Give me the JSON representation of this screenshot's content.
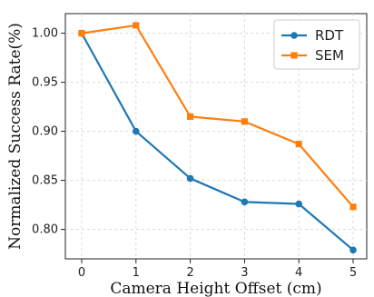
{
  "chart_data": {
    "type": "line",
    "xlabel": "Camera Height Offset (cm)",
    "ylabel": "Normalized Success Rate(%)",
    "x": [
      0,
      1,
      2,
      3,
      4,
      5
    ],
    "xticks": [
      "0",
      "1",
      "2",
      "3",
      "4",
      "5"
    ],
    "yticks": [
      "0.80",
      "0.85",
      "0.90",
      "0.95",
      "1.00"
    ],
    "ylim": [
      0.77,
      1.02
    ],
    "grid": true,
    "legend_position": "top-right",
    "series": [
      {
        "name": "RDT",
        "color": "#1f77b4",
        "marker": "circle",
        "values": [
          1.0,
          0.9,
          0.852,
          0.828,
          0.826,
          0.779
        ]
      },
      {
        "name": "SEM",
        "color": "#ff7f0e",
        "marker": "square",
        "values": [
          1.0,
          1.008,
          0.915,
          0.91,
          0.887,
          0.823
        ]
      }
    ]
  }
}
